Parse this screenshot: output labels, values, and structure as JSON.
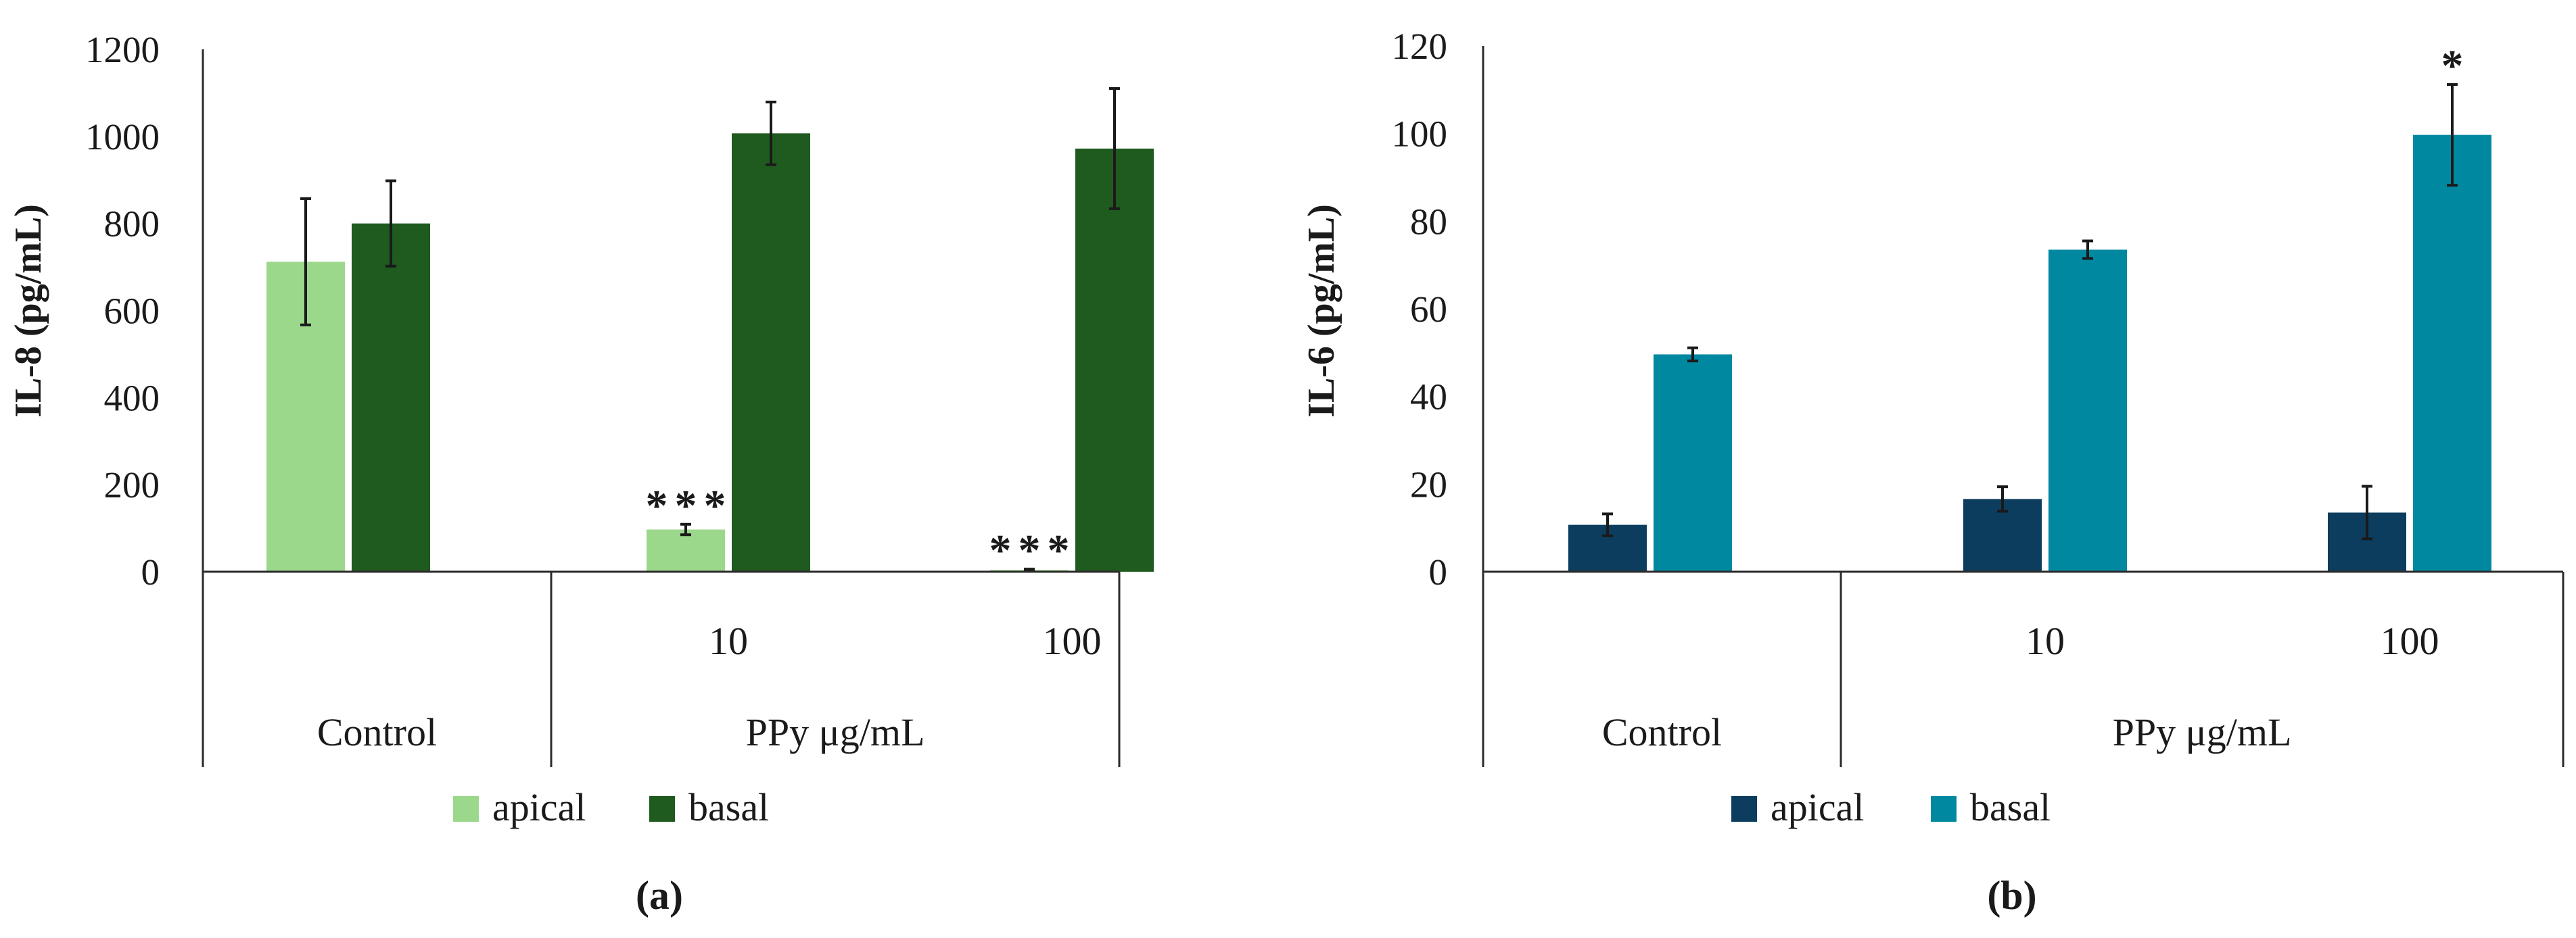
{
  "chart_data": [
    {
      "type": "bar",
      "panel_label": "(a)",
      "ylabel": "IL-8 (pg/mL)",
      "ylim": [
        0,
        1200
      ],
      "yticks": [
        0,
        200,
        400,
        600,
        800,
        1000,
        1200
      ],
      "categories": [
        "",
        "10",
        "100"
      ],
      "groups": [
        {
          "label": "Control",
          "categories": [
            ""
          ]
        },
        {
          "label": "PPy μg/mL",
          "categories": [
            "10",
            "100"
          ]
        }
      ],
      "series": [
        {
          "name": "apical",
          "values": [
            712,
            97,
            4
          ],
          "errors": [
            145,
            12,
            2
          ]
        },
        {
          "name": "basal",
          "values": [
            800,
            1007,
            972
          ],
          "errors": [
            98,
            72,
            138
          ]
        }
      ],
      "annotations": [
        {
          "series": "apical",
          "category": "10",
          "text": "***"
        },
        {
          "series": "apical",
          "category": "100",
          "text": "***"
        }
      ],
      "colors": {
        "apical": "#9bd88c",
        "basal": "#1f5a1f"
      },
      "legend": "bottom"
    },
    {
      "type": "bar",
      "panel_label": "(b)",
      "ylabel": "IL-6 (pg/mL)",
      "ylim": [
        0,
        120
      ],
      "yticks": [
        0,
        20,
        40,
        60,
        80,
        100,
        120
      ],
      "categories": [
        "",
        "10",
        "100"
      ],
      "groups": [
        {
          "label": "Control",
          "categories": [
            ""
          ]
        },
        {
          "label": "PPy μg/mL",
          "categories": [
            "10",
            "100"
          ]
        }
      ],
      "series": [
        {
          "name": "apical",
          "values": [
            10.7,
            16.6,
            13.5
          ],
          "errors": [
            2.5,
            2.8,
            6.0
          ]
        },
        {
          "name": "basal",
          "values": [
            49.6,
            73.5,
            99.7
          ],
          "errors": [
            1.5,
            2.0,
            11.5
          ]
        }
      ],
      "annotations": [
        {
          "series": "basal",
          "category": "100",
          "text": "*"
        }
      ],
      "colors": {
        "apical": "#0c3d5e",
        "basal": "#0088a0"
      },
      "legend": "bottom"
    }
  ]
}
